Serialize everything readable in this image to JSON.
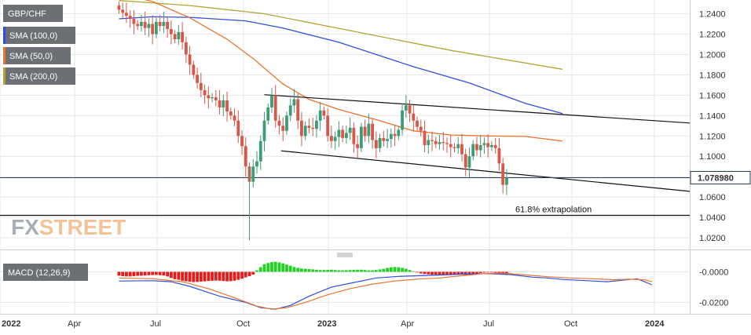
{
  "chart_data": {
    "type": "candlestick",
    "symbol": "GBP/CHF",
    "watermark": "FXSTREET",
    "current_price_label": "1.078980",
    "annotation": "61.8% extrapolation",
    "price_axis": {
      "range": [
        1.0085,
        1.2535
      ],
      "ticks": [
        "1.2400",
        "1.2200",
        "1.2000",
        "1.1800",
        "1.1600",
        "1.1400",
        "1.1200",
        "1.1000",
        "1.0800",
        "1.0600",
        "1.0400",
        "1.0200"
      ]
    },
    "macd_axis": {
      "range": [
        -0.0265,
        0.0085
      ],
      "ticks": [
        "-0.0000",
        "-0.0200"
      ]
    },
    "time_axis": {
      "labels": [
        "2022",
        "Apr",
        "Jul",
        "Oct",
        "2023",
        "Apr",
        "Jul",
        "Oct",
        "2024"
      ]
    },
    "legend": [
      {
        "name": "SMA (100,0)",
        "color": "#2f4fe0"
      },
      {
        "name": "SMA (50,0)",
        "color": "#e8752f"
      },
      {
        "name": "SMA (200,0)",
        "color": "#b5a336"
      }
    ],
    "macd_label": "MACD (12,26,9)",
    "colors": {
      "up": "#3d9b75",
      "down": "#d7574a",
      "sma100": "#2f4fe0",
      "sma50": "#e8752f",
      "sma200": "#b5a336",
      "hist_pos": "#21d321",
      "hist_neg": "#e81a1a",
      "macd": "#2f4fe0",
      "signal": "#e8752f"
    },
    "horizontal_levels": [
      {
        "name": "current-price",
        "value": 1.079
      },
      {
        "name": "extrapolation-618",
        "value": 1.042
      }
    ],
    "channel": {
      "upper": [
        [
          0,
          1.1605
        ],
        [
          80,
          1.141
        ]
      ],
      "lower": [
        [
          0,
          1.107
        ],
        [
          80,
          1.078
        ]
      ]
    },
    "price_series": {
      "start_index": -39,
      "close": [
        1.244,
        1.241,
        1.238,
        1.235,
        1.23,
        1.228,
        1.232,
        1.226,
        1.23,
        1.22,
        1.232,
        1.228,
        1.232,
        1.225,
        1.22,
        1.215,
        1.222,
        1.212,
        1.2,
        1.19,
        1.18,
        1.172,
        1.165,
        1.16,
        1.157,
        1.158,
        1.155,
        1.148,
        1.155,
        1.144,
        1.14,
        1.135,
        1.12,
        1.11,
        1.09,
        1.075,
        1.09,
        1.095,
        1.115,
        1.135,
        1.148,
        1.16,
        1.135,
        1.13,
        1.125,
        1.14,
        1.15,
        1.156,
        1.135,
        1.12,
        1.13,
        1.128,
        1.127,
        1.135,
        1.145,
        1.14,
        1.12,
        1.115,
        1.119,
        1.126,
        1.118,
        1.123,
        1.128,
        1.112,
        1.108,
        1.129,
        1.12,
        1.132,
        1.116,
        1.108,
        1.118,
        1.115,
        1.117,
        1.122,
        1.12,
        1.126,
        1.145,
        1.15,
        1.142,
        1.135,
        1.129,
        1.125,
        1.111,
        1.116,
        1.115,
        1.112,
        1.114,
        1.113,
        1.112,
        1.109,
        1.108,
        1.112,
        1.102,
        1.089,
        1.1,
        1.112,
        1.106,
        1.111,
        1.113,
        1.109,
        1.111,
        1.108,
        1.093,
        1.072,
        1.079
      ],
      "open": [
        1.248,
        1.244,
        1.241,
        1.238,
        1.235,
        1.23,
        1.228,
        1.232,
        1.226,
        1.23,
        1.22,
        1.232,
        1.228,
        1.232,
        1.225,
        1.22,
        1.215,
        1.222,
        1.212,
        1.2,
        1.19,
        1.18,
        1.172,
        1.165,
        1.16,
        1.157,
        1.158,
        1.155,
        1.148,
        1.155,
        1.144,
        1.14,
        1.135,
        1.12,
        1.11,
        1.09,
        1.075,
        1.09,
        1.095,
        1.115,
        1.135,
        1.148,
        1.16,
        1.135,
        1.13,
        1.125,
        1.14,
        1.15,
        1.156,
        1.135,
        1.12,
        1.13,
        1.128,
        1.127,
        1.135,
        1.145,
        1.14,
        1.12,
        1.115,
        1.119,
        1.126,
        1.118,
        1.123,
        1.128,
        1.112,
        1.108,
        1.129,
        1.12,
        1.132,
        1.116,
        1.108,
        1.118,
        1.115,
        1.117,
        1.122,
        1.12,
        1.126,
        1.145,
        1.15,
        1.142,
        1.135,
        1.129,
        1.125,
        1.111,
        1.116,
        1.115,
        1.112,
        1.114,
        1.113,
        1.112,
        1.109,
        1.108,
        1.112,
        1.102,
        1.089,
        1.1,
        1.112,
        1.106,
        1.111,
        1.113,
        1.109,
        1.111,
        1.108,
        1.093,
        1.072
      ]
    },
    "sma200": [
      [
        -39,
        1.253
      ],
      [
        -20,
        1.248
      ],
      [
        0,
        1.24
      ],
      [
        25,
        1.222
      ],
      [
        50,
        1.204
      ],
      [
        80,
        1.1855
      ]
    ],
    "sma100": [
      [
        -39,
        1.235
      ],
      [
        -30,
        1.237
      ],
      [
        -20,
        1.2365
      ],
      [
        -5,
        1.233
      ],
      [
        5,
        1.226
      ],
      [
        20,
        1.212
      ],
      [
        40,
        1.188
      ],
      [
        55,
        1.172
      ],
      [
        70,
        1.152
      ],
      [
        80,
        1.142
      ]
    ],
    "sma50": [
      [
        -39,
        1.26
      ],
      [
        -30,
        1.252
      ],
      [
        -20,
        1.236
      ],
      [
        -10,
        1.215
      ],
      [
        -3,
        1.196
      ],
      [
        5,
        1.171
      ],
      [
        12,
        1.156
      ],
      [
        20,
        1.146
      ],
      [
        30,
        1.136
      ],
      [
        40,
        1.125
      ],
      [
        50,
        1.121
      ],
      [
        60,
        1.12
      ],
      [
        70,
        1.1195
      ],
      [
        80,
        1.115
      ]
    ],
    "macd_hist": [
      -0.0025,
      -0.0028,
      -0.003,
      -0.003,
      -0.0028,
      -0.0026,
      -0.0025,
      -0.0024,
      -0.0022,
      -0.0021,
      -0.002,
      -0.0022,
      -0.0024,
      -0.003,
      -0.004,
      -0.0048,
      -0.0052,
      -0.0058,
      -0.0062,
      -0.0065,
      -0.0067,
      -0.0066,
      -0.0064,
      -0.0062,
      -0.006,
      -0.0058,
      -0.0057,
      -0.0058,
      -0.006,
      -0.0062,
      -0.0061,
      -0.0058,
      -0.0052,
      -0.0045,
      -0.0036,
      -0.0028,
      -0.0018,
      0.001,
      0.003,
      0.005,
      0.0058,
      0.0064,
      0.0066,
      0.0062,
      0.0056,
      0.0048,
      0.004,
      0.0032,
      0.0026,
      0.0022,
      0.002,
      0.0018,
      0.0016,
      0.0014,
      0.0012,
      0.0012,
      0.0013,
      0.0014,
      0.0012,
      0.001,
      0.001,
      0.0011,
      0.0012,
      0.0013,
      0.0014,
      0.0014,
      0.0012,
      0.001,
      0.001,
      0.0012,
      0.0016,
      0.002,
      0.0026,
      0.003,
      0.0032,
      0.003,
      0.0026,
      0.002,
      0.0012,
      0.0004,
      -0.0004,
      -0.001,
      -0.0014,
      -0.0016,
      -0.0018,
      -0.0019,
      -0.002,
      -0.002,
      -0.0019,
      -0.0018,
      -0.0017,
      -0.0016,
      -0.0017,
      -0.002,
      -0.0022,
      -0.0018,
      -0.0012,
      -0.0008,
      -0.0005,
      -0.0004,
      -0.0004,
      -0.0006,
      -0.0012,
      -0.0018,
      -0.002
    ],
    "macd_line": [
      [
        -39,
        -0.006
      ],
      [
        -30,
        -0.0058
      ],
      [
        -25,
        -0.0065
      ],
      [
        -20,
        -0.0095
      ],
      [
        -12,
        -0.016
      ],
      [
        -5,
        -0.02
      ],
      [
        -1,
        -0.0235
      ],
      [
        3,
        -0.0245
      ],
      [
        7,
        -0.022
      ],
      [
        12,
        -0.016
      ],
      [
        18,
        -0.01
      ],
      [
        24,
        -0.007
      ],
      [
        30,
        -0.004
      ],
      [
        36,
        -0.003
      ],
      [
        42,
        -0.0025
      ],
      [
        48,
        -0.002
      ],
      [
        54,
        -0.0015
      ],
      [
        60,
        -0.0012
      ],
      [
        66,
        -0.0018
      ],
      [
        72,
        -0.0035
      ],
      [
        76,
        -0.004
      ],
      [
        80,
        -0.005
      ],
      [
        84,
        -0.0055
      ],
      [
        88,
        -0.006
      ],
      [
        92,
        -0.0065
      ],
      [
        96,
        -0.0055
      ],
      [
        100,
        -0.0045
      ],
      [
        102,
        -0.0065
      ],
      [
        104,
        -0.0085
      ]
    ],
    "signal_line": [
      [
        -39,
        -0.004
      ],
      [
        -30,
        -0.0045
      ],
      [
        -22,
        -0.0065
      ],
      [
        -15,
        -0.011
      ],
      [
        -8,
        -0.017
      ],
      [
        -2,
        -0.0225
      ],
      [
        2,
        -0.0245
      ],
      [
        6,
        -0.0235
      ],
      [
        11,
        -0.02
      ],
      [
        17,
        -0.015
      ],
      [
        23,
        -0.011
      ],
      [
        29,
        -0.008
      ],
      [
        35,
        -0.006
      ],
      [
        41,
        -0.0048
      ],
      [
        47,
        -0.004
      ],
      [
        53,
        -0.0025
      ],
      [
        59,
        -0.0012
      ],
      [
        64,
        -0.0008
      ],
      [
        70,
        -0.002
      ],
      [
        76,
        -0.0032
      ],
      [
        82,
        -0.004
      ],
      [
        88,
        -0.0045
      ],
      [
        94,
        -0.0052
      ],
      [
        98,
        -0.0048
      ],
      [
        102,
        -0.0052
      ],
      [
        104,
        -0.0065
      ]
    ]
  }
}
